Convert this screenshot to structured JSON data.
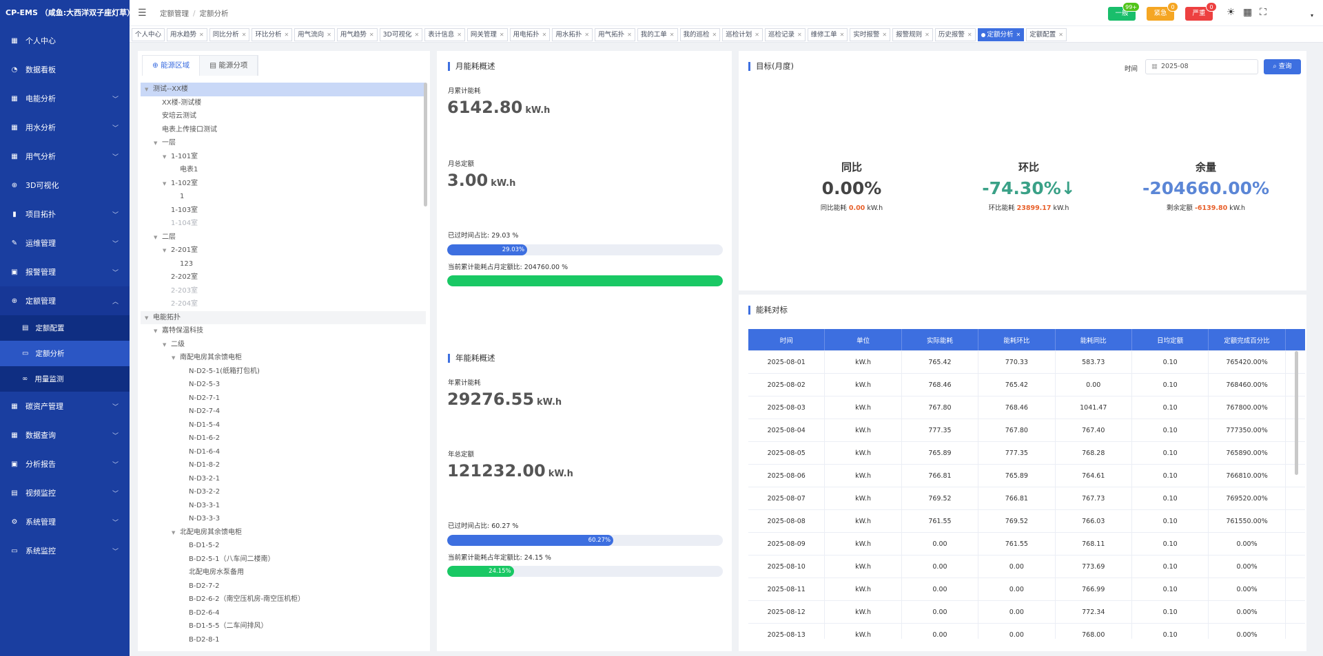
{
  "app_title": "CP-EMS （咸鱼:大西洋双子座灯草）",
  "sidebar": {
    "items": [
      {
        "label": "个人中心",
        "icon": "user-icon",
        "glyph": "▦",
        "expand": false
      },
      {
        "label": "数据看板",
        "icon": "dashboard-icon",
        "glyph": "◔",
        "expand": false
      },
      {
        "label": "电能分析",
        "icon": "grid-icon",
        "glyph": "▦",
        "expand": true
      },
      {
        "label": "用水分析",
        "icon": "grid-icon",
        "glyph": "▦",
        "expand": true
      },
      {
        "label": "用气分析",
        "icon": "grid-icon",
        "glyph": "▦",
        "expand": true
      },
      {
        "label": "3D可视化",
        "icon": "plus-circle-icon",
        "glyph": "⊕",
        "expand": false
      },
      {
        "label": "项目拓扑",
        "icon": "bar-chart-icon",
        "glyph": "▮",
        "expand": true
      },
      {
        "label": "运维管理",
        "icon": "wrench-icon",
        "glyph": "✎",
        "expand": true
      },
      {
        "label": "报警管理",
        "icon": "alarm-icon",
        "glyph": "▣",
        "expand": true
      },
      {
        "label": "定额管理",
        "icon": "quota-icon",
        "glyph": "⊕",
        "expand": true,
        "open": true
      }
    ],
    "sub_items": [
      {
        "label": "定额配置",
        "icon": "config-icon",
        "glyph": "▤",
        "active": false
      },
      {
        "label": "定额分析",
        "icon": "monitor-icon",
        "glyph": "▭",
        "active": true
      },
      {
        "label": "用量监测",
        "icon": "link-icon",
        "glyph": "∞",
        "active": false
      }
    ],
    "items_after": [
      {
        "label": "碳资产管理",
        "icon": "table-icon",
        "glyph": "▦",
        "expand": true
      },
      {
        "label": "数据查询",
        "icon": "table-icon",
        "glyph": "▦",
        "expand": true
      },
      {
        "label": "分析报告",
        "icon": "report-icon",
        "glyph": "▣",
        "expand": true
      },
      {
        "label": "视频监控",
        "icon": "video-icon",
        "glyph": "▤",
        "expand": true
      },
      {
        "label": "系统管理",
        "icon": "gear-icon",
        "glyph": "⚙",
        "expand": true
      },
      {
        "label": "系统监控",
        "icon": "monitor-icon",
        "glyph": "▭",
        "expand": true
      }
    ]
  },
  "header": {
    "breadcrumb": [
      "定额管理",
      "定额分析"
    ],
    "alerts": [
      {
        "label": "一般",
        "count": "99+",
        "color": "#19be6b",
        "count_color": "#52c41a"
      },
      {
        "label": "紧急",
        "count": "0",
        "color": "#f5a623",
        "count_color": "#f5a623"
      },
      {
        "label": "严重",
        "count": "0",
        "color": "#ed4040",
        "count_color": "#ed4040"
      }
    ]
  },
  "tabs": [
    {
      "label": "个人中心",
      "active": false,
      "closable": false
    },
    {
      "label": "用水趋势",
      "active": false,
      "closable": true
    },
    {
      "label": "同比分析",
      "active": false,
      "closable": true
    },
    {
      "label": "环比分析",
      "active": false,
      "closable": true
    },
    {
      "label": "用气流向",
      "active": false,
      "closable": true
    },
    {
      "label": "用气趋势",
      "active": false,
      "closable": true
    },
    {
      "label": "3D可视化",
      "active": false,
      "closable": true
    },
    {
      "label": "表计信息",
      "active": false,
      "closable": true
    },
    {
      "label": "网关管理",
      "active": false,
      "closable": true
    },
    {
      "label": "用电拓扑",
      "active": false,
      "closable": true
    },
    {
      "label": "用水拓扑",
      "active": false,
      "closable": true
    },
    {
      "label": "用气拓扑",
      "active": false,
      "closable": true
    },
    {
      "label": "我的工单",
      "active": false,
      "closable": true
    },
    {
      "label": "我的巡检",
      "active": false,
      "closable": true
    },
    {
      "label": "巡检计划",
      "active": false,
      "closable": true
    },
    {
      "label": "巡检记录",
      "active": false,
      "closable": true
    },
    {
      "label": "维修工单",
      "active": false,
      "closable": true
    },
    {
      "label": "实时报警",
      "active": false,
      "closable": true
    },
    {
      "label": "报警规则",
      "active": false,
      "closable": true
    },
    {
      "label": "历史报警",
      "active": false,
      "closable": true
    },
    {
      "label": "定额分析",
      "active": true,
      "closable": true
    },
    {
      "label": "定额配置",
      "active": false,
      "closable": true
    }
  ],
  "left_panel": {
    "tabs": [
      {
        "label": "能源区域",
        "icon": "region-icon",
        "glyph": "⊕",
        "active": true
      },
      {
        "label": "能源分项",
        "icon": "list-icon",
        "glyph": "▤",
        "active": false
      }
    ],
    "tree": [
      {
        "label": "测试--XX楼",
        "level": 0,
        "caret": "▼",
        "state": "sel"
      },
      {
        "label": "XX楼-测试楼",
        "level": 1,
        "caret": "",
        "state": ""
      },
      {
        "label": "安培云测试",
        "level": 1,
        "caret": "",
        "state": ""
      },
      {
        "label": "电表上传接口测试",
        "level": 1,
        "caret": "",
        "state": ""
      },
      {
        "label": "一层",
        "level": 1,
        "caret": "▼",
        "state": ""
      },
      {
        "label": "1-101室",
        "level": 2,
        "caret": "▼",
        "state": ""
      },
      {
        "label": "电表1",
        "level": 3,
        "caret": "",
        "state": ""
      },
      {
        "label": "1-102室",
        "level": 2,
        "caret": "▼",
        "state": ""
      },
      {
        "label": "1",
        "level": 3,
        "caret": "",
        "state": ""
      },
      {
        "label": "1-103室",
        "level": 2,
        "caret": "",
        "state": ""
      },
      {
        "label": "1-104室",
        "level": 2,
        "caret": "",
        "state": "dis"
      },
      {
        "label": "二层",
        "level": 1,
        "caret": "▼",
        "state": ""
      },
      {
        "label": "2-201室",
        "level": 2,
        "caret": "▼",
        "state": ""
      },
      {
        "label": "123",
        "level": 3,
        "caret": "",
        "state": ""
      },
      {
        "label": "2-202室",
        "level": 2,
        "caret": "",
        "state": ""
      },
      {
        "label": "2-203室",
        "level": 2,
        "caret": "",
        "state": "dis"
      },
      {
        "label": "2-204室",
        "level": 2,
        "caret": "",
        "state": "dis"
      },
      {
        "label": "电能拓扑",
        "level": 0,
        "caret": "▼",
        "state": "alt"
      },
      {
        "label": "嘉特保温科技",
        "level": 1,
        "caret": "▼",
        "state": ""
      },
      {
        "label": "二级",
        "level": 2,
        "caret": "▼",
        "state": ""
      },
      {
        "label": "南配电房其余馈电柜",
        "level": 3,
        "caret": "▼",
        "state": ""
      },
      {
        "label": "N-D2-5-1(纸箱打包机)",
        "level": 4,
        "caret": "",
        "state": ""
      },
      {
        "label": "N-D2-5-3",
        "level": 4,
        "caret": "",
        "state": ""
      },
      {
        "label": "N-D2-7-1",
        "level": 4,
        "caret": "",
        "state": ""
      },
      {
        "label": "N-D2-7-4",
        "level": 4,
        "caret": "",
        "state": ""
      },
      {
        "label": "N-D1-5-4",
        "level": 4,
        "caret": "",
        "state": ""
      },
      {
        "label": "N-D1-6-2",
        "level": 4,
        "caret": "",
        "state": ""
      },
      {
        "label": "N-D1-6-4",
        "level": 4,
        "caret": "",
        "state": ""
      },
      {
        "label": "N-D1-8-2",
        "level": 4,
        "caret": "",
        "state": ""
      },
      {
        "label": "N-D3-2-1",
        "level": 4,
        "caret": "",
        "state": ""
      },
      {
        "label": "N-D3-2-2",
        "level": 4,
        "caret": "",
        "state": ""
      },
      {
        "label": "N-D3-3-1",
        "level": 4,
        "caret": "",
        "state": ""
      },
      {
        "label": "N-D3-3-3",
        "level": 4,
        "caret": "",
        "state": ""
      },
      {
        "label": "北配电房其余馈电柜",
        "level": 3,
        "caret": "▼",
        "state": ""
      },
      {
        "label": "B-D1-5-2",
        "level": 4,
        "caret": "",
        "state": ""
      },
      {
        "label": "B-D2-5-1（八车间二楼南）",
        "level": 4,
        "caret": "",
        "state": ""
      },
      {
        "label": "北配电房水泵备用",
        "level": 4,
        "caret": "",
        "state": ""
      },
      {
        "label": "B-D2-7-2",
        "level": 4,
        "caret": "",
        "state": ""
      },
      {
        "label": "B-D2-6-2（南空压机房-南空压机柜）",
        "level": 4,
        "caret": "",
        "state": ""
      },
      {
        "label": "B-D2-6-4",
        "level": 4,
        "caret": "",
        "state": ""
      },
      {
        "label": "B-D1-5-5（二车间排风）",
        "level": 4,
        "caret": "",
        "state": ""
      },
      {
        "label": "B-D2-8-1",
        "level": 4,
        "caret": "",
        "state": ""
      }
    ]
  },
  "monthly": {
    "title": "月能耗概述",
    "cum_label": "月累计能耗",
    "cum_value": "6142.80",
    "unit": "kW.h",
    "quota_label": "月总定额",
    "quota_value": "3.00",
    "time_label": "已过时间占比:  29.03 %",
    "time_pct": 29.03,
    "time_bar_text": "29.03%",
    "energy_label": "当前累计能耗占月定额比:  204760.00 %",
    "energy_pct": 100,
    "energy_bar_text": ""
  },
  "yearly": {
    "title": "年能耗概述",
    "cum_label": "年累计能耗",
    "cum_value": "29276.55",
    "unit": "kW.h",
    "quota_label": "年总定额",
    "quota_value": "121232.00",
    "time_label": "已过时间占比:  60.27 %",
    "time_pct": 60.27,
    "time_bar_text": "60.27%",
    "energy_label": "当前累计能耗占年定额比:  24.15 %",
    "energy_pct": 24.15,
    "energy_bar_text": "24.15%"
  },
  "target": {
    "title": "目标(月度)",
    "time_label": "时间",
    "date_value": "2025-08",
    "query_label": "查询",
    "yoy": {
      "title": "同比",
      "value": "0.00%",
      "desc_prefix": "同比能耗",
      "desc_value": "0.00",
      "desc_unit": "kW.h",
      "color": "#444"
    },
    "mom": {
      "title": "环比",
      "value": "-74.30%↓",
      "desc_prefix": "环比能耗",
      "desc_value": "23899.17",
      "desc_unit": "kW.h",
      "color": "#3aa187"
    },
    "remain": {
      "title": "余量",
      "value": "-204660.00%",
      "desc_prefix": "剩余定额",
      "desc_value": "-6139.80",
      "desc_unit": "kW.h",
      "color": "#5b86d6"
    }
  },
  "table": {
    "title": "能耗对标",
    "columns": [
      "时间",
      "单位",
      "实际能耗",
      "能耗环比",
      "能耗同比",
      "日均定额",
      "定额完成百分比"
    ],
    "rows": [
      [
        "2025-08-01",
        "kW.h",
        "765.42",
        "770.33",
        "583.73",
        "0.10",
        "765420.00%"
      ],
      [
        "2025-08-02",
        "kW.h",
        "768.46",
        "765.42",
        "0.00",
        "0.10",
        "768460.00%"
      ],
      [
        "2025-08-03",
        "kW.h",
        "767.80",
        "768.46",
        "1041.47",
        "0.10",
        "767800.00%"
      ],
      [
        "2025-08-04",
        "kW.h",
        "777.35",
        "767.80",
        "767.40",
        "0.10",
        "777350.00%"
      ],
      [
        "2025-08-05",
        "kW.h",
        "765.89",
        "777.35",
        "768.28",
        "0.10",
        "765890.00%"
      ],
      [
        "2025-08-06",
        "kW.h",
        "766.81",
        "765.89",
        "764.61",
        "0.10",
        "766810.00%"
      ],
      [
        "2025-08-07",
        "kW.h",
        "769.52",
        "766.81",
        "767.73",
        "0.10",
        "769520.00%"
      ],
      [
        "2025-08-08",
        "kW.h",
        "761.55",
        "769.52",
        "766.03",
        "0.10",
        "761550.00%"
      ],
      [
        "2025-08-09",
        "kW.h",
        "0.00",
        "761.55",
        "768.11",
        "0.10",
        "0.00%"
      ],
      [
        "2025-08-10",
        "kW.h",
        "0.00",
        "0.00",
        "773.69",
        "0.10",
        "0.00%"
      ],
      [
        "2025-08-11",
        "kW.h",
        "0.00",
        "0.00",
        "766.99",
        "0.10",
        "0.00%"
      ],
      [
        "2025-08-12",
        "kW.h",
        "0.00",
        "0.00",
        "772.34",
        "0.10",
        "0.00%"
      ],
      [
        "2025-08-13",
        "kW.h",
        "0.00",
        "0.00",
        "768.00",
        "0.10",
        "0.00%"
      ]
    ]
  },
  "colors": {
    "accent": "#3d6fe0",
    "green": "#19c864",
    "sidebar": "#1a3ea0"
  }
}
